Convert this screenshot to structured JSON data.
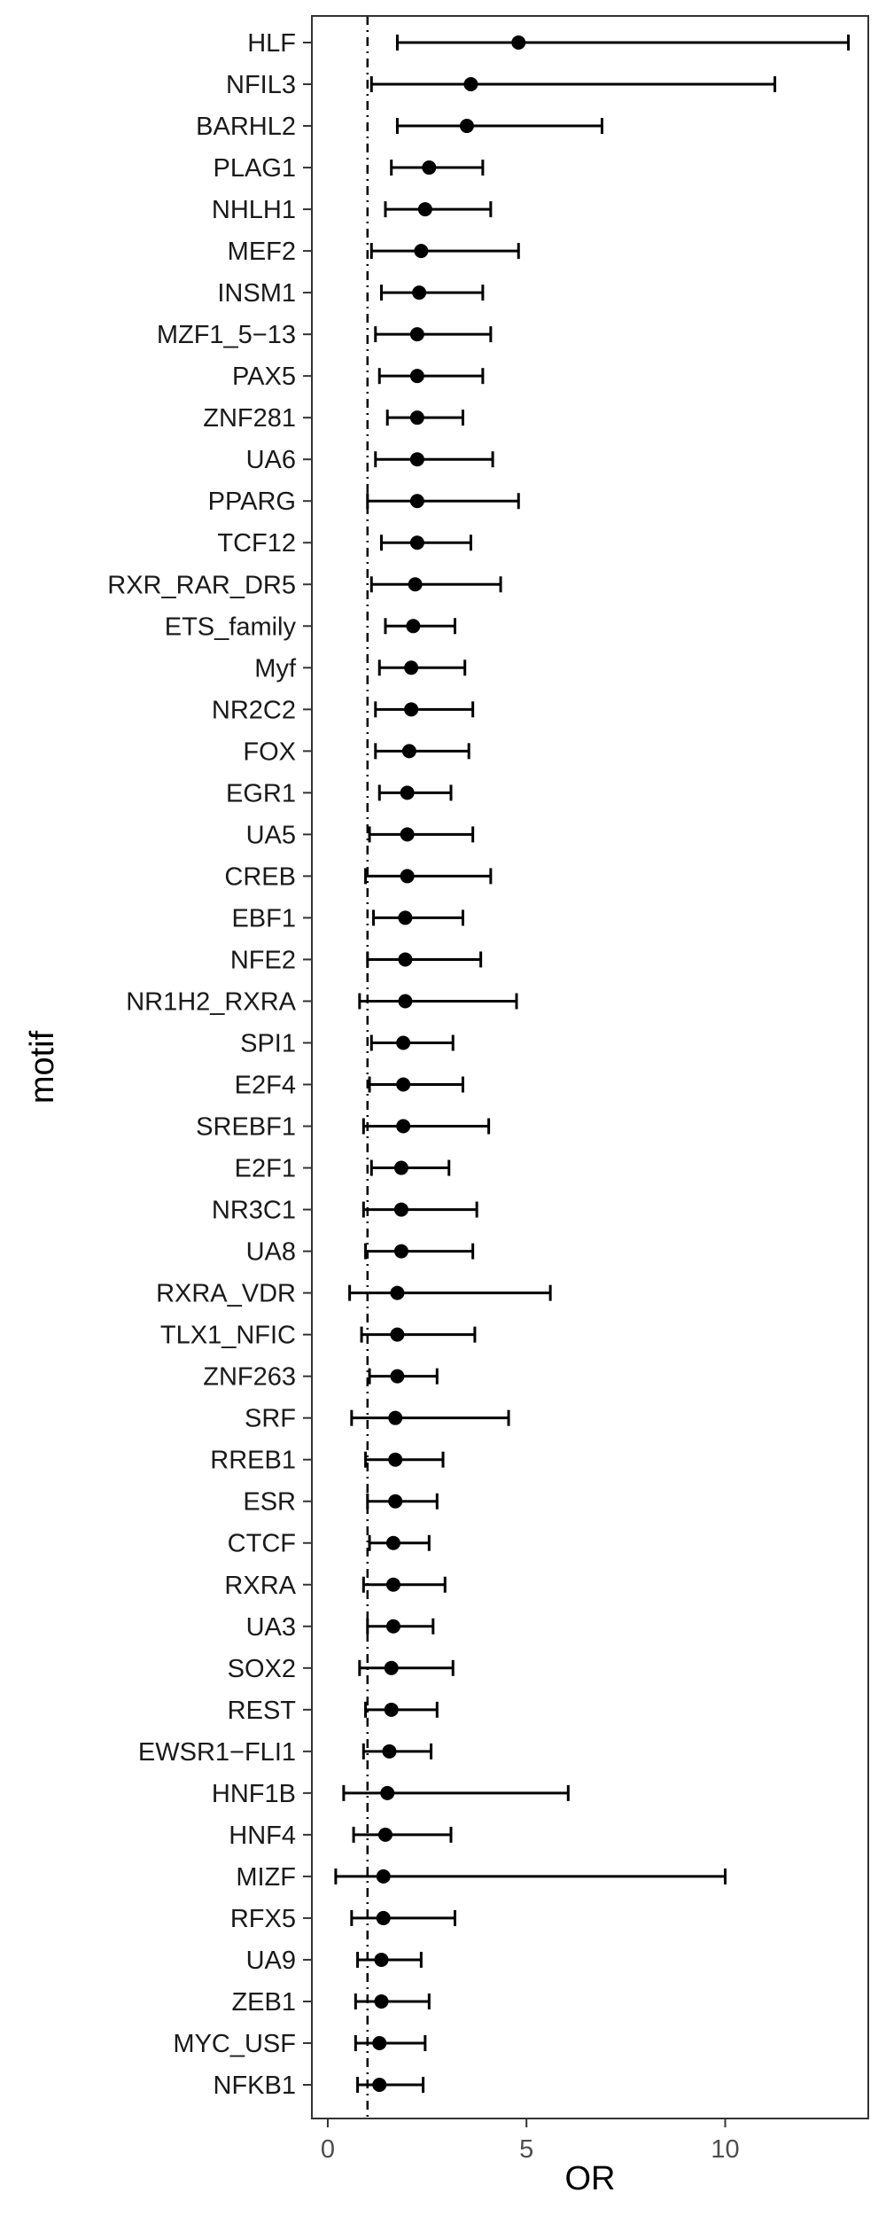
{
  "chart_data": {
    "type": "forest",
    "xlabel": "OR",
    "ylabel": "motif",
    "xlim": [
      -0.4,
      13.6
    ],
    "x_ticks": [
      0,
      5,
      10
    ],
    "reference_line": 1,
    "grid": false,
    "colors": {
      "point": "#000000",
      "frame": "#333333",
      "reference": "#000000"
    },
    "series": [
      {
        "motif": "HLF",
        "or": 4.8,
        "lower": 1.75,
        "upper": 13.1
      },
      {
        "motif": "NFIL3",
        "or": 3.6,
        "lower": 1.1,
        "upper": 11.25
      },
      {
        "motif": "BARHL2",
        "or": 3.5,
        "lower": 1.75,
        "upper": 6.9
      },
      {
        "motif": "PLAG1",
        "or": 2.55,
        "lower": 1.6,
        "upper": 3.9
      },
      {
        "motif": "NHLH1",
        "or": 2.45,
        "lower": 1.45,
        "upper": 4.1
      },
      {
        "motif": "MEF2",
        "or": 2.35,
        "lower": 1.1,
        "upper": 4.8
      },
      {
        "motif": "INSM1",
        "or": 2.3,
        "lower": 1.35,
        "upper": 3.9
      },
      {
        "motif": "MZF1_5−13",
        "or": 2.25,
        "lower": 1.2,
        "upper": 4.1
      },
      {
        "motif": "PAX5",
        "or": 2.25,
        "lower": 1.3,
        "upper": 3.9
      },
      {
        "motif": "ZNF281",
        "or": 2.25,
        "lower": 1.5,
        "upper": 3.4
      },
      {
        "motif": "UA6",
        "or": 2.25,
        "lower": 1.2,
        "upper": 4.15
      },
      {
        "motif": "PPARG",
        "or": 2.25,
        "lower": 1.0,
        "upper": 4.8
      },
      {
        "motif": "TCF12",
        "or": 2.25,
        "lower": 1.35,
        "upper": 3.6
      },
      {
        "motif": "RXR_RAR_DR5",
        "or": 2.2,
        "lower": 1.1,
        "upper": 4.35
      },
      {
        "motif": "ETS_family",
        "or": 2.15,
        "lower": 1.45,
        "upper": 3.2
      },
      {
        "motif": "Myf",
        "or": 2.1,
        "lower": 1.3,
        "upper": 3.45
      },
      {
        "motif": "NR2C2",
        "or": 2.1,
        "lower": 1.2,
        "upper": 3.65
      },
      {
        "motif": "FOX",
        "or": 2.05,
        "lower": 1.2,
        "upper": 3.55
      },
      {
        "motif": "EGR1",
        "or": 2.0,
        "lower": 1.3,
        "upper": 3.1
      },
      {
        "motif": "UA5",
        "or": 2.0,
        "lower": 1.05,
        "upper": 3.65
      },
      {
        "motif": "CREB",
        "or": 2.0,
        "lower": 0.95,
        "upper": 4.1
      },
      {
        "motif": "EBF1",
        "or": 1.95,
        "lower": 1.15,
        "upper": 3.4
      },
      {
        "motif": "NFE2",
        "or": 1.95,
        "lower": 1.0,
        "upper": 3.85
      },
      {
        "motif": "NR1H2_RXRA",
        "or": 1.95,
        "lower": 0.8,
        "upper": 4.75
      },
      {
        "motif": "SPI1",
        "or": 1.9,
        "lower": 1.1,
        "upper": 3.15
      },
      {
        "motif": "E2F4",
        "or": 1.9,
        "lower": 1.05,
        "upper": 3.4
      },
      {
        "motif": "SREBF1",
        "or": 1.9,
        "lower": 0.9,
        "upper": 4.05
      },
      {
        "motif": "E2F1",
        "or": 1.85,
        "lower": 1.1,
        "upper": 3.05
      },
      {
        "motif": "NR3C1",
        "or": 1.85,
        "lower": 0.9,
        "upper": 3.75
      },
      {
        "motif": "UA8",
        "or": 1.85,
        "lower": 0.95,
        "upper": 3.65
      },
      {
        "motif": "RXRA_VDR",
        "or": 1.75,
        "lower": 0.55,
        "upper": 5.6
      },
      {
        "motif": "TLX1_NFIC",
        "or": 1.75,
        "lower": 0.85,
        "upper": 3.7
      },
      {
        "motif": "ZNF263",
        "or": 1.75,
        "lower": 1.05,
        "upper": 2.75
      },
      {
        "motif": "SRF",
        "or": 1.7,
        "lower": 0.6,
        "upper": 4.55
      },
      {
        "motif": "RREB1",
        "or": 1.7,
        "lower": 0.95,
        "upper": 2.9
      },
      {
        "motif": "ESR",
        "or": 1.7,
        "lower": 1.0,
        "upper": 2.75
      },
      {
        "motif": "CTCF",
        "or": 1.65,
        "lower": 1.05,
        "upper": 2.55
      },
      {
        "motif": "RXRA",
        "or": 1.65,
        "lower": 0.9,
        "upper": 2.95
      },
      {
        "motif": "UA3",
        "or": 1.65,
        "lower": 1.0,
        "upper": 2.65
      },
      {
        "motif": "SOX2",
        "or": 1.6,
        "lower": 0.8,
        "upper": 3.15
      },
      {
        "motif": "REST",
        "or": 1.6,
        "lower": 0.95,
        "upper": 2.75
      },
      {
        "motif": "EWSR1−FLI1",
        "or": 1.55,
        "lower": 0.9,
        "upper": 2.6
      },
      {
        "motif": "HNF1B",
        "or": 1.5,
        "lower": 0.4,
        "upper": 6.05
      },
      {
        "motif": "HNF4",
        "or": 1.45,
        "lower": 0.65,
        "upper": 3.1
      },
      {
        "motif": "MIZF",
        "or": 1.4,
        "lower": 0.2,
        "upper": 10.0
      },
      {
        "motif": "RFX5",
        "or": 1.4,
        "lower": 0.6,
        "upper": 3.2
      },
      {
        "motif": "UA9",
        "or": 1.35,
        "lower": 0.75,
        "upper": 2.35
      },
      {
        "motif": "ZEB1",
        "or": 1.35,
        "lower": 0.7,
        "upper": 2.55
      },
      {
        "motif": "MYC_USF",
        "or": 1.3,
        "lower": 0.7,
        "upper": 2.45
      },
      {
        "motif": "NFKB1",
        "or": 1.3,
        "lower": 0.75,
        "upper": 2.4
      }
    ]
  }
}
